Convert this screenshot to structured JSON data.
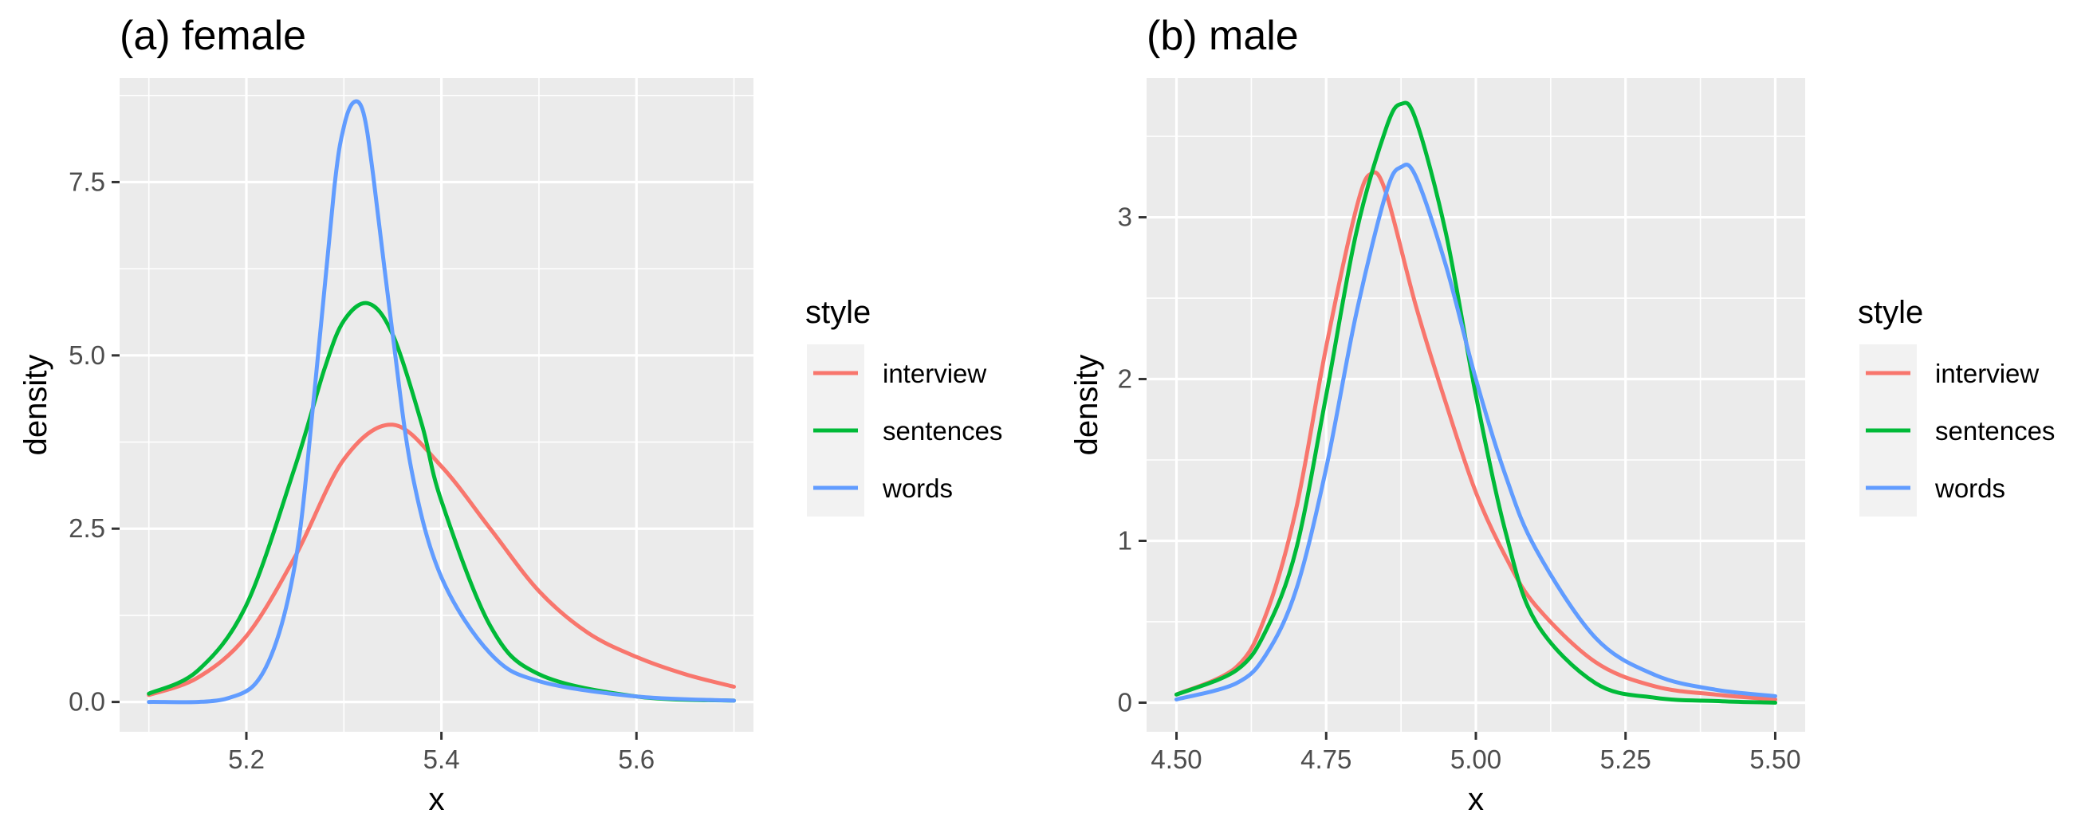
{
  "chart_data": [
    {
      "type": "line",
      "title": "(a) female",
      "xlabel": "x",
      "ylabel": "density",
      "xlim": [
        5.07,
        5.72
      ],
      "ylim": [
        -0.43,
        9.0
      ],
      "x_ticks": [
        5.2,
        5.4,
        5.6
      ],
      "x_tick_labels": [
        "5.2",
        "5.4",
        "5.6"
      ],
      "y_ticks": [
        0,
        2.5,
        5,
        7.5
      ],
      "y_tick_labels": [
        "0.0",
        "2.5",
        "5.0",
        "7.5"
      ],
      "grid": true,
      "legend": {
        "title": "style",
        "position": "right"
      },
      "series": [
        {
          "name": "interview",
          "color": "#F8766D",
          "x": [
            5.1,
            5.15,
            5.2,
            5.25,
            5.3,
            5.35,
            5.4,
            5.45,
            5.5,
            5.55,
            5.6,
            5.65,
            5.7
          ],
          "y": [
            0.1,
            0.35,
            0.95,
            2.1,
            3.5,
            4.0,
            3.4,
            2.5,
            1.6,
            1.0,
            0.65,
            0.4,
            0.22
          ]
        },
        {
          "name": "sentences",
          "color": "#00BA38",
          "x": [
            5.1,
            5.15,
            5.2,
            5.25,
            5.28,
            5.3,
            5.325,
            5.35,
            5.38,
            5.4,
            5.45,
            5.5,
            5.6,
            5.7
          ],
          "y": [
            0.12,
            0.45,
            1.4,
            3.4,
            4.8,
            5.5,
            5.75,
            5.3,
            4.0,
            2.9,
            1.1,
            0.4,
            0.08,
            0.02
          ]
        },
        {
          "name": "words",
          "color": "#619CFF",
          "x": [
            5.1,
            5.18,
            5.22,
            5.25,
            5.27,
            5.29,
            5.3,
            5.31,
            5.32,
            5.33,
            5.35,
            5.37,
            5.4,
            5.45,
            5.5,
            5.6,
            5.7
          ],
          "y": [
            0.0,
            0.05,
            0.5,
            2.0,
            4.5,
            7.4,
            8.3,
            8.65,
            8.5,
            7.6,
            5.3,
            3.3,
            1.8,
            0.7,
            0.3,
            0.08,
            0.02
          ]
        }
      ]
    },
    {
      "type": "line",
      "title": "(b) male",
      "xlabel": "x",
      "ylabel": "density",
      "xlim": [
        4.45,
        5.55
      ],
      "ylim": [
        -0.18,
        3.86
      ],
      "x_ticks": [
        4.5,
        4.75,
        5.0,
        5.25,
        5.5
      ],
      "x_tick_labels": [
        "4.50",
        "4.75",
        "5.00",
        "5.25",
        "5.50"
      ],
      "y_ticks": [
        0,
        1,
        2,
        3
      ],
      "y_tick_labels": [
        "0",
        "1",
        "2",
        "3"
      ],
      "grid": true,
      "legend": {
        "title": "style",
        "position": "right"
      },
      "series": [
        {
          "name": "interview",
          "color": "#F8766D",
          "x": [
            4.5,
            4.6,
            4.65,
            4.7,
            4.75,
            4.8,
            4.825,
            4.85,
            4.9,
            4.95,
            5.0,
            5.05,
            5.1,
            5.2,
            5.3,
            5.4,
            5.5
          ],
          "y": [
            0.05,
            0.22,
            0.55,
            1.2,
            2.2,
            3.05,
            3.27,
            3.15,
            2.45,
            1.85,
            1.3,
            0.9,
            0.6,
            0.25,
            0.1,
            0.05,
            0.02
          ]
        },
        {
          "name": "sentences",
          "color": "#00BA38",
          "x": [
            4.5,
            4.6,
            4.65,
            4.7,
            4.75,
            4.8,
            4.85,
            4.875,
            4.9,
            4.95,
            5.0,
            5.05,
            5.1,
            5.2,
            5.3,
            5.4,
            5.5
          ],
          "y": [
            0.05,
            0.2,
            0.45,
            0.95,
            1.9,
            2.9,
            3.55,
            3.7,
            3.6,
            2.9,
            1.9,
            1.05,
            0.5,
            0.12,
            0.03,
            0.01,
            0.0
          ]
        },
        {
          "name": "words",
          "color": "#619CFF",
          "x": [
            4.5,
            4.6,
            4.65,
            4.7,
            4.75,
            4.8,
            4.85,
            4.875,
            4.9,
            4.95,
            5.0,
            5.05,
            5.1,
            5.2,
            5.3,
            5.4,
            5.5
          ],
          "y": [
            0.02,
            0.12,
            0.3,
            0.7,
            1.45,
            2.4,
            3.15,
            3.31,
            3.25,
            2.7,
            2.0,
            1.4,
            0.95,
            0.4,
            0.17,
            0.08,
            0.04
          ]
        }
      ]
    }
  ]
}
